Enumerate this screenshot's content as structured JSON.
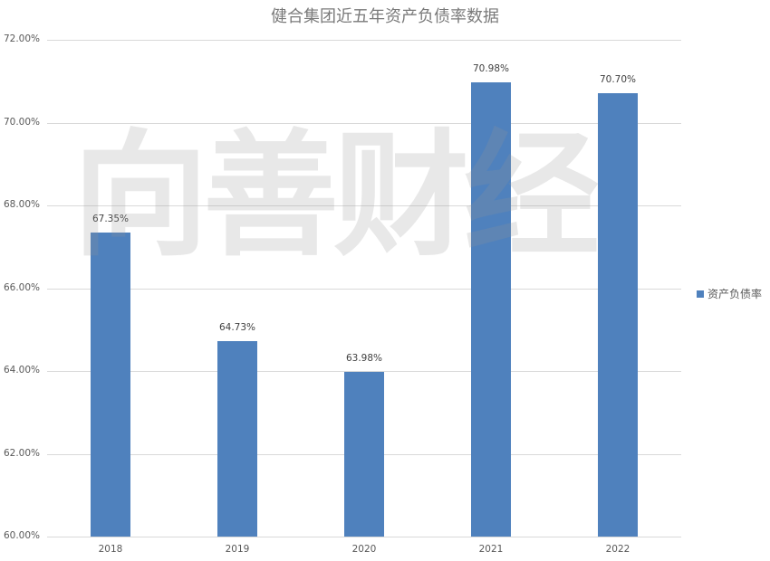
{
  "watermark": "向善财经",
  "chart_data": {
    "type": "bar",
    "title": "健合集团近五年资产负债率数据",
    "xlabel": "",
    "ylabel": "",
    "categories": [
      "2018",
      "2019",
      "2020",
      "2021",
      "2022"
    ],
    "series": [
      {
        "name": "资产负债率",
        "color": "#4f81bd",
        "values": [
          67.35,
          64.73,
          63.98,
          70.98,
          70.7
        ],
        "labels": [
          "67.35%",
          "64.73%",
          "63.98%",
          "70.98%",
          "70.70%"
        ]
      }
    ],
    "ylim": [
      60,
      72
    ],
    "yticks": [
      "60.00%",
      "62.00%",
      "64.00%",
      "66.00%",
      "68.00%",
      "70.00%",
      "72.00%"
    ],
    "grid": true,
    "legend_position": "right"
  }
}
